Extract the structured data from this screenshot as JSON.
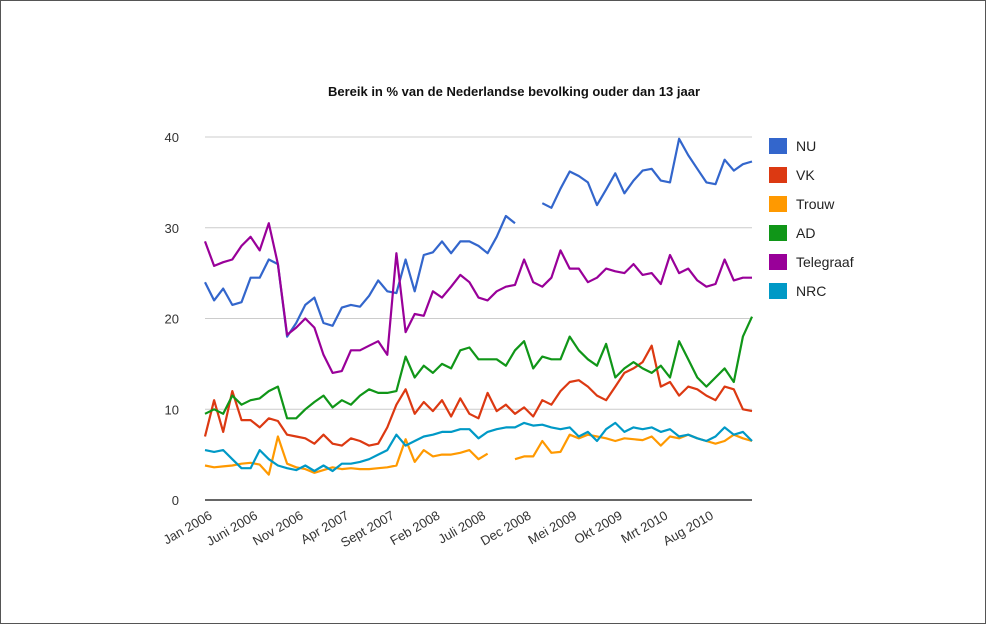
{
  "chart_data": {
    "type": "line",
    "title": "Bereik in % van de Nederlandse bevolking ouder dan 13 jaar",
    "xlabel": "",
    "ylabel": "",
    "ylim": [
      0,
      40
    ],
    "yticks": [
      0,
      10,
      20,
      30,
      40
    ],
    "grid": true,
    "legend_position": "right",
    "x_tick_labels": [
      "Jan 2006",
      "Juni 2006",
      "Nov 2006",
      "Apr 2007",
      "Sept 2007",
      "Feb 2008",
      "Juli 2008",
      "Dec 2008",
      "Mei 2009",
      "Okt 2009",
      "Mrt 2010",
      "Aug 2010"
    ],
    "x_tick_index": [
      0,
      5,
      10,
      15,
      20,
      25,
      30,
      35,
      40,
      45,
      50,
      55
    ],
    "n_points": 61,
    "series": [
      {
        "name": "NU",
        "color": "#3366cc",
        "values": [
          24,
          22,
          23.3,
          21.5,
          21.8,
          24.5,
          24.5,
          26.5,
          26,
          18,
          19.5,
          21.5,
          22.3,
          19.5,
          19.2,
          21.2,
          21.5,
          21.3,
          22.5,
          24.2,
          23,
          22.8,
          26.5,
          23,
          27,
          27.3,
          28.5,
          27.2,
          28.5,
          28.5,
          28,
          27.2,
          29,
          31.3,
          30.5,
          null,
          null,
          32.7,
          32.2,
          34.3,
          36.2,
          35.7,
          35,
          32.5,
          34.2,
          36,
          33.8,
          35.2,
          36.3,
          36.5,
          35.2,
          35,
          39.8,
          38,
          36.5,
          35,
          34.8,
          37.5,
          36.3,
          37,
          37.3
        ]
      },
      {
        "name": "VK",
        "color": "#dc3912",
        "values": [
          7,
          11,
          7.5,
          12,
          8.8,
          8.8,
          8,
          9,
          8.7,
          7.2,
          7,
          6.8,
          6.2,
          7.2,
          6.2,
          6,
          6.8,
          6.5,
          6,
          6.2,
          8,
          10.5,
          12.2,
          9.5,
          10.8,
          9.8,
          11,
          9.2,
          11.2,
          9.5,
          9,
          11.8,
          9.8,
          10.5,
          9.5,
          10.2,
          9.2,
          11,
          10.5,
          12,
          13,
          13.2,
          12.5,
          11.5,
          11,
          12.5,
          14,
          14.5,
          15.2,
          17,
          12.5,
          13,
          11.5,
          12.5,
          12.2,
          11.5,
          11,
          12.5,
          12.2,
          10,
          9.8
        ]
      },
      {
        "name": "Trouw",
        "color": "#ff9900",
        "values": [
          3.8,
          3.6,
          3.7,
          3.8,
          4,
          4.1,
          3.9,
          2.8,
          7,
          4,
          3.6,
          3.4,
          3,
          3.3,
          3.6,
          3.4,
          3.5,
          3.4,
          3.4,
          3.5,
          3.6,
          3.8,
          6.7,
          4.2,
          5.5,
          4.8,
          5,
          5,
          5.2,
          5.5,
          4.5,
          5.1,
          null,
          null,
          4.5,
          4.8,
          4.8,
          6.5,
          5.2,
          5.3,
          7.2,
          6.8,
          7.2,
          7,
          6.8,
          6.5,
          6.8,
          6.7,
          6.6,
          7,
          6,
          7,
          6.8,
          7.2,
          6.8,
          6.5,
          6.2,
          6.5,
          7.2,
          6.8,
          6.5
        ]
      },
      {
        "name": "AD",
        "color": "#109618",
        "values": [
          9.5,
          10,
          9.5,
          11.5,
          10.5,
          11,
          11.2,
          12,
          12.5,
          9,
          9,
          10,
          10.8,
          11.5,
          10.2,
          11,
          10.5,
          11.5,
          12.2,
          11.8,
          11.8,
          12,
          15.8,
          13.5,
          14.8,
          14,
          15,
          14.5,
          16.5,
          16.8,
          15.5,
          15.5,
          15.5,
          14.8,
          16.5,
          17.5,
          14.5,
          15.8,
          15.5,
          15.5,
          18,
          16.5,
          15.5,
          14.8,
          17.2,
          13.5,
          14.5,
          15.2,
          14.5,
          14,
          14.8,
          13.5,
          17.5,
          15.5,
          13.5,
          12.5,
          13.5,
          14.5,
          13,
          18,
          20.2
        ]
      },
      {
        "name": "Telegraaf",
        "color": "#990099",
        "values": [
          28.5,
          25.8,
          26.2,
          26.5,
          28,
          29,
          27.5,
          30.5,
          26,
          18.2,
          19,
          20,
          19,
          16,
          14,
          14.2,
          16.5,
          16.5,
          17,
          17.5,
          16,
          27.2,
          18.5,
          20.5,
          20.3,
          23,
          22.3,
          23.5,
          24.8,
          24,
          22.3,
          22,
          23,
          23.5,
          23.7,
          26.5,
          24,
          23.5,
          24.5,
          27.5,
          25.5,
          25.5,
          24,
          24.5,
          25.5,
          25.2,
          25,
          26,
          24.8,
          25,
          23.8,
          27,
          25,
          25.5,
          24.2,
          23.5,
          23.8,
          26.5,
          24.2,
          24.5,
          24.5
        ]
      },
      {
        "name": "NRC",
        "color": "#0099c6",
        "values": [
          5.5,
          5.3,
          5.5,
          4.5,
          3.5,
          3.5,
          5.5,
          4.5,
          3.8,
          3.5,
          3.3,
          3.8,
          3.2,
          3.8,
          3.2,
          4,
          4,
          4.2,
          4.5,
          5,
          5.5,
          7.2,
          6,
          6.5,
          7,
          7.2,
          7.5,
          7.5,
          7.8,
          7.8,
          6.8,
          7.5,
          7.8,
          8,
          8,
          8.5,
          8.2,
          8.3,
          8,
          7.8,
          8,
          7,
          7.5,
          6.5,
          7.8,
          8.5,
          7.5,
          8,
          7.8,
          8,
          7.5,
          7.8,
          7,
          7.2,
          6.8,
          6.5,
          7,
          8,
          7.2,
          7.5,
          6.5
        ]
      }
    ]
  }
}
